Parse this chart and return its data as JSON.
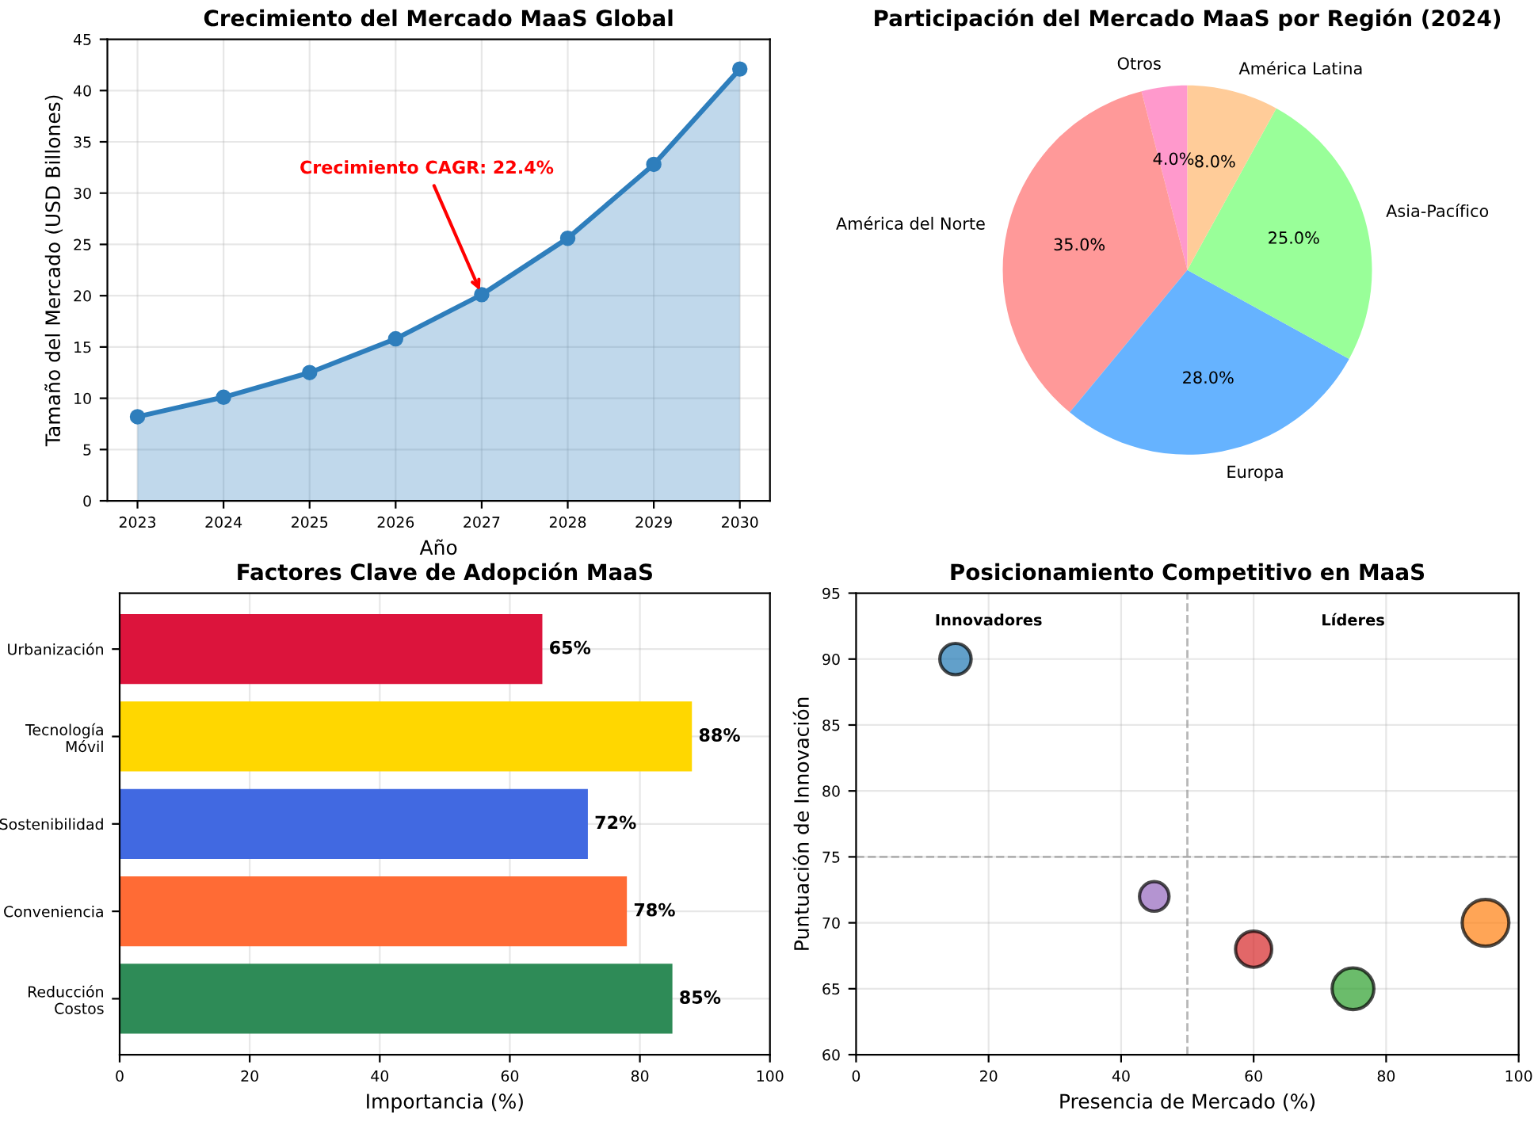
{
  "chart_data": [
    {
      "type": "area",
      "title": "Crecimiento del Mercado MaaS Global",
      "xlabel": "Año",
      "ylabel": "Tamaño del Mercado (USD Billones)",
      "x": [
        2023,
        2024,
        2025,
        2026,
        2027,
        2028,
        2029,
        2030
      ],
      "series": [
        {
          "color": "#2e7ebc",
          "values": [
            8.2,
            10.1,
            12.5,
            15.8,
            20.1,
            25.6,
            32.8,
            42.1
          ]
        }
      ],
      "marker": "circle",
      "xlim": [
        2022.65,
        2030.35
      ],
      "xticks": [
        2023,
        2024,
        2025,
        2026,
        2027,
        2028,
        2029,
        2030
      ],
      "ylim": [
        0,
        45
      ],
      "yticks": [
        0,
        5,
        10,
        15,
        20,
        25,
        30,
        35,
        40,
        45
      ],
      "grid": true,
      "annotations": [
        {
          "text": "Crecimiento CAGR: 22.4%",
          "x": 2027,
          "y": 20.1
        }
      ]
    },
    {
      "type": "pie",
      "title": "Participación del Mercado MaaS por Región (2024)",
      "categories": [
        "Otros",
        "América del Norte",
        "Europa",
        "Asia-Pacífico",
        "América Latina"
      ],
      "values": [
        4,
        35,
        28,
        25,
        8
      ],
      "colors": [
        "#ff99cc",
        "#ff9999",
        "#66b3ff",
        "#99ff99",
        "#ffcc99"
      ],
      "value_labels": [
        "4.0%",
        "35.0%",
        "28.0%",
        "25.0%",
        "8.0%"
      ]
    },
    {
      "type": "bar",
      "orientation": "horizontal",
      "title": "Factores Clave de Adopción MaaS",
      "xlabel": "Importancia (%)",
      "categories": [
        "Urbanización",
        "Tecnología\nMóvil",
        "Sostenibilidad",
        "Conveniencia",
        "Reducción\nCostos"
      ],
      "values": [
        65,
        88,
        72,
        78,
        85
      ],
      "colors": [
        "#dc143c",
        "#ffd700",
        "#4169e1",
        "#ff6b35",
        "#2e8b57"
      ],
      "value_labels": [
        "65%",
        "88%",
        "72%",
        "78%",
        "85%"
      ],
      "xlim": [
        0,
        100
      ],
      "xticks": [
        0,
        20,
        40,
        60,
        80,
        100
      ],
      "grid": true
    },
    {
      "type": "bubble",
      "title": "Posicionamiento Competitivo en MaaS",
      "xlabel": "Presencia de Mercado (%)",
      "ylabel": "Puntuación de Innovación",
      "x": [
        15,
        45,
        60,
        75,
        95
      ],
      "values": [
        90,
        72,
        68,
        65,
        70
      ],
      "sizes": [
        0.45,
        0.4,
        0.6,
        0.8,
        1
      ],
      "colors": [
        "#1f77b4",
        "#9467bd",
        "#d62728",
        "#2ca02c",
        "#ff7f0e"
      ],
      "xlim": [
        0,
        100
      ],
      "xticks": [
        0,
        20,
        40,
        60,
        80,
        100
      ],
      "ylim": [
        60,
        95
      ],
      "yticks": [
        60,
        65,
        70,
        75,
        80,
        85,
        90,
        95
      ],
      "grid": true,
      "ref_lines": [
        {
          "axis": "x",
          "value": 50,
          "color": "#999999",
          "line_style": "dashed"
        },
        {
          "axis": "y",
          "value": 75,
          "color": "#999999",
          "line_style": "dashed"
        }
      ],
      "annotations": [
        "Innovadores",
        "Líderes"
      ]
    }
  ]
}
